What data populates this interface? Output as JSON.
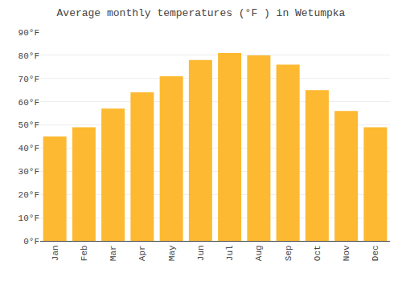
{
  "chart_data": {
    "type": "bar",
    "title": "Average monthly temperatures (°F ) in Wetumpka",
    "categories": [
      "Jan",
      "Feb",
      "Mar",
      "Apr",
      "May",
      "Jun",
      "Jul",
      "Aug",
      "Sep",
      "Oct",
      "Nov",
      "Dec"
    ],
    "values": [
      45,
      49,
      57,
      64,
      71,
      78,
      81,
      80,
      76,
      65,
      56,
      49
    ],
    "color": "#FDB931",
    "ylim": [
      0,
      90
    ],
    "yticks": [
      {
        "value": 0,
        "label": "0°F"
      },
      {
        "value": 10,
        "label": "10°F"
      },
      {
        "value": 20,
        "label": "20°F"
      },
      {
        "value": 30,
        "label": "30°F"
      },
      {
        "value": 40,
        "label": "40°F"
      },
      {
        "value": 50,
        "label": "50°F"
      },
      {
        "value": 60,
        "label": "60°F"
      },
      {
        "value": 70,
        "label": "70°F"
      },
      {
        "value": 80,
        "label": "80°F"
      },
      {
        "value": 90,
        "label": "90°F"
      }
    ],
    "grid": true
  }
}
